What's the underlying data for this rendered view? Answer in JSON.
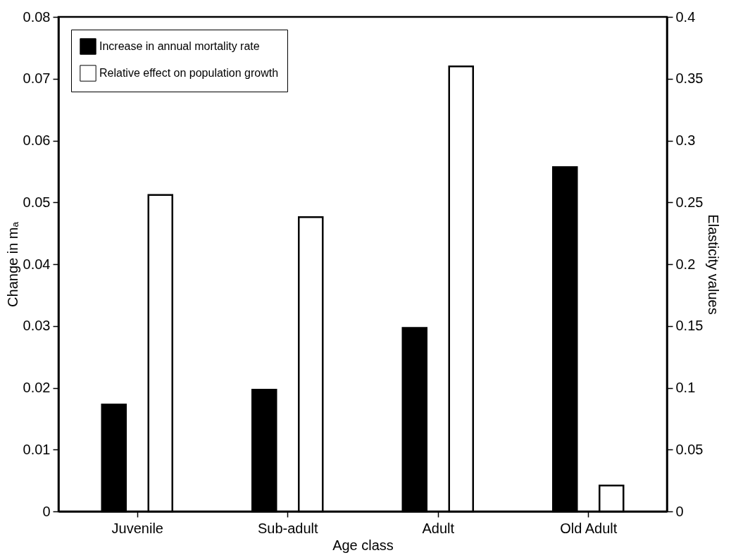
{
  "chart_data": {
    "type": "bar",
    "xlabel": "Age class",
    "ylabel": "Change in mₐ",
    "y2label": "Elasticity values",
    "categories": [
      "Juvenile",
      "Sub-adult",
      "Adult",
      "Old Adult"
    ],
    "series": [
      {
        "name": "Increase in annual mortality rate",
        "color": "#000000",
        "values": [
          0.0173,
          0.0197,
          0.0297,
          0.0557
        ]
      },
      {
        "name": "Relative effect on population growth",
        "color": "#ffffff",
        "values": [
          0.256,
          0.238,
          0.36,
          0.021
        ],
        "axis": "y2"
      }
    ],
    "ylim": [
      0,
      0.08
    ],
    "yticks": [
      0,
      0.01,
      0.02,
      0.03,
      0.04,
      0.05,
      0.06,
      0.07,
      0.08
    ],
    "y2lim": [
      0,
      0.4
    ],
    "y2ticks": [
      0,
      0.05,
      0.1,
      0.15,
      0.2,
      0.25,
      0.3,
      0.35,
      0.4
    ],
    "grid": false,
    "legend": "top left"
  }
}
